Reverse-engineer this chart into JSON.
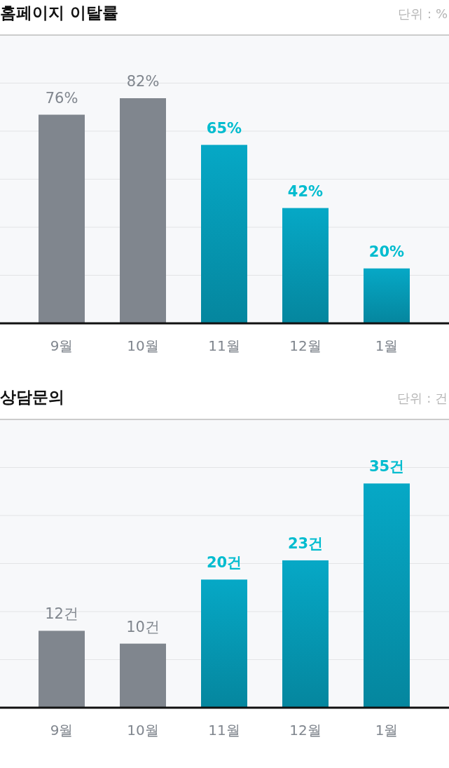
{
  "chart_data": [
    {
      "type": "bar",
      "title": "홈페이지 이탈률",
      "annotations": [
        "단위 : %"
      ],
      "categories": [
        "9월",
        "10월",
        "11월",
        "12월",
        "1월"
      ],
      "values": [
        76,
        82,
        65,
        42,
        20
      ],
      "colors": [
        "#80868e",
        "#80868e",
        "#06a8c6",
        "#06a8c6",
        "#06a8c6"
      ],
      "value_labels": [
        "76%",
        "82%",
        "65%",
        "42%",
        "20%"
      ],
      "ylim": [
        0,
        105
      ],
      "yticks": [
        {
          "value": 17.5,
          "label": null
        },
        {
          "value": 35,
          "label": null
        },
        {
          "value": 52.5,
          "label": null
        },
        {
          "value": 70,
          "label": null
        },
        {
          "value": 87.5,
          "label": null
        }
      ],
      "grid": "y"
    },
    {
      "type": "bar",
      "title": "상담문의",
      "annotations": [
        "단위 : 건"
      ],
      "categories": [
        "9월",
        "10월",
        "11월",
        "12월",
        "1월"
      ],
      "values": [
        12,
        10,
        20,
        23,
        35
      ],
      "colors": [
        "#80868e",
        "#80868e",
        "#06a8c6",
        "#06a8c6",
        "#06a8c6"
      ],
      "value_labels": [
        "12건",
        "10건",
        "20건",
        "23건",
        "35건"
      ],
      "ylim": [
        0,
        45
      ],
      "yticks": [
        {
          "value": 7.5,
          "label": null
        },
        {
          "value": 15,
          "label": null
        },
        {
          "value": 22.5,
          "label": null
        },
        {
          "value": 30,
          "label": null
        },
        {
          "value": 37.5,
          "label": null
        }
      ],
      "grid": "y"
    }
  ]
}
